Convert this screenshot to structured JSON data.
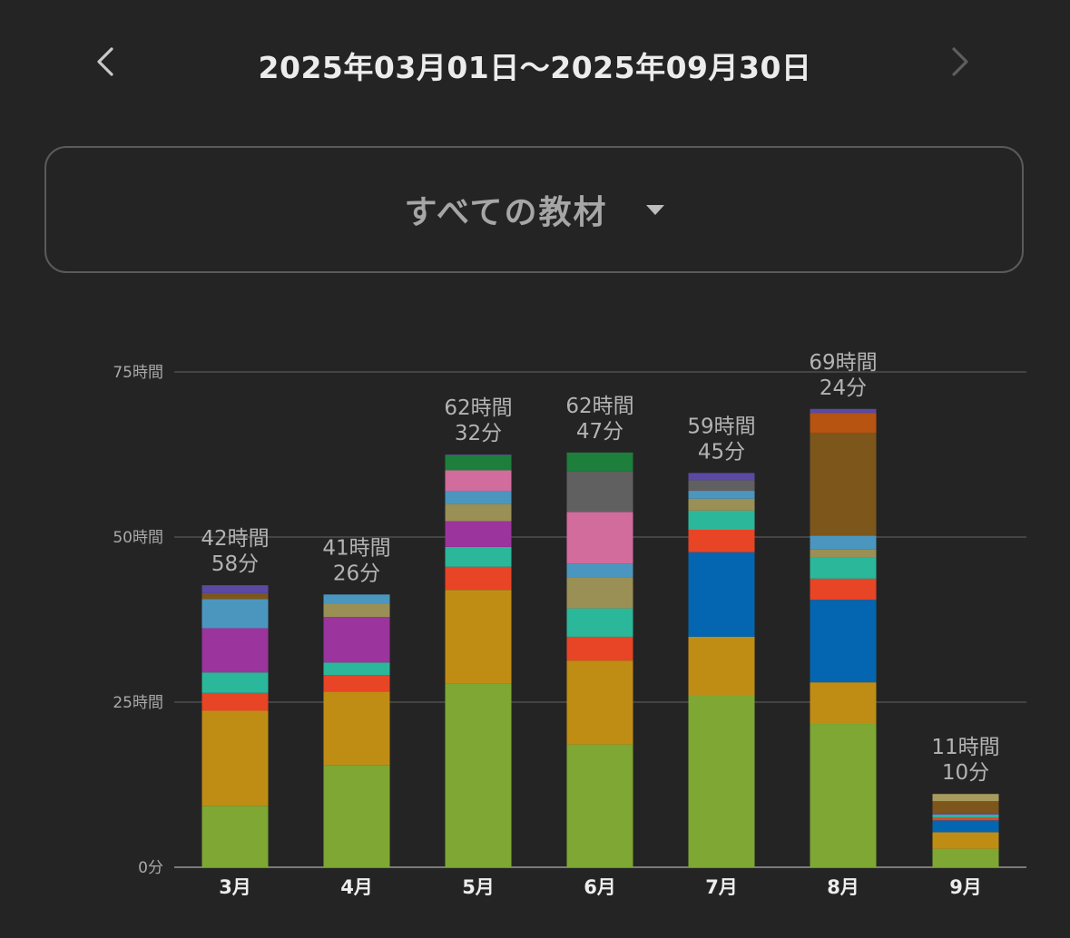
{
  "header": {
    "date_range": "2025年03月01日〜2025年09月30日",
    "prev_icon": "chevron-left-icon",
    "next_icon": "chevron-right-icon"
  },
  "selector": {
    "label": "すべての教材",
    "icon": "caret-down-icon"
  },
  "chart_data": {
    "type": "bar",
    "stacked": true,
    "categories": [
      "3月",
      "4月",
      "5月",
      "6月",
      "7月",
      "8月",
      "9月"
    ],
    "totals": [
      [
        "42時間",
        "58分"
      ],
      [
        "41時間",
        "26分"
      ],
      [
        "62時間",
        "32分"
      ],
      [
        "62時間",
        "47分"
      ],
      [
        "59時間",
        "45分"
      ],
      [
        "69時間",
        "24分"
      ],
      [
        "11時間",
        "10分"
      ]
    ],
    "y_ticks": [
      {
        "value": 0,
        "label": "0分"
      },
      {
        "value": 25,
        "label": "25時間"
      },
      {
        "value": 50,
        "label": "50時間"
      },
      {
        "value": 75,
        "label": "75時間"
      }
    ],
    "ylim": [
      0,
      75
    ],
    "grid": true,
    "series": [
      {
        "color": "#7ea734",
        "values": [
          9.3,
          15.5,
          27.8,
          18.6,
          26.1,
          21.7,
          2.8
        ]
      },
      {
        "color": "#c08d14",
        "values": [
          14.4,
          11.1,
          14.2,
          12.7,
          8.8,
          6.3,
          2.5
        ]
      },
      {
        "color": "#0466b0",
        "values": [
          0,
          0,
          0,
          0,
          12.8,
          12.5,
          1.8
        ]
      },
      {
        "color": "#e84426",
        "values": [
          2.7,
          2.5,
          3.5,
          3.6,
          3.4,
          3.2,
          0.4
        ]
      },
      {
        "color": "#2bb79a",
        "values": [
          3.1,
          1.9,
          3.0,
          4.3,
          2.9,
          3.2,
          0.5
        ]
      },
      {
        "color": "#9b349c",
        "values": [
          6.7,
          6.9,
          3.9,
          0,
          0,
          0,
          0.2
        ]
      },
      {
        "color": "#9a9055",
        "values": [
          0,
          2.0,
          2.6,
          4.7,
          1.8,
          1.2,
          0
        ]
      },
      {
        "color": "#4b96bf",
        "values": [
          4.4,
          1.4,
          2.0,
          2.1,
          1.2,
          2.1,
          0
        ]
      },
      {
        "color": "#d16c9c",
        "values": [
          0,
          0,
          3.1,
          7.8,
          0,
          0,
          0
        ]
      },
      {
        "color": "#606060",
        "values": [
          0,
          0,
          0,
          6.1,
          1.6,
          0,
          0
        ]
      },
      {
        "color": "#7d561b",
        "values": [
          0.9,
          0,
          0,
          0,
          0,
          15.6,
          1.8
        ]
      },
      {
        "color": "#b75411",
        "values": [
          0,
          0,
          0,
          0,
          0,
          3.0,
          0
        ]
      },
      {
        "color": "#1d7f3b",
        "values": [
          0,
          0,
          2.3,
          2.9,
          0,
          0,
          0
        ]
      },
      {
        "color": "#a89b5e",
        "values": [
          0,
          0,
          0,
          0,
          0,
          0,
          1.1
        ]
      },
      {
        "color": "#5b49a3",
        "values": [
          1.2,
          0,
          0.1,
          0,
          1.1,
          0.6,
          0
        ]
      }
    ]
  }
}
